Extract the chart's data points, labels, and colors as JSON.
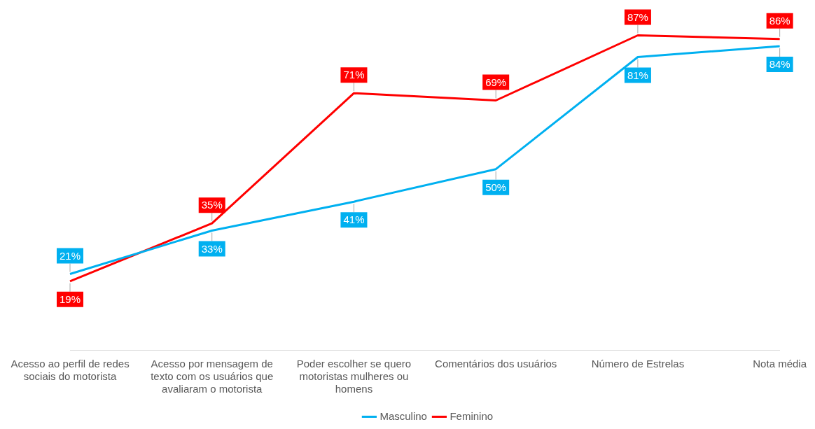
{
  "chart_data": {
    "type": "line",
    "categories": [
      "Acesso ao perfil de redes sociais do motorista",
      "Acesso por mensagem de texto com os usuários que avaliaram o motorista",
      "Poder escolher se quero motoristas mulheres ou homens",
      "Comentários dos usuários",
      "Número de Estrelas",
      "Nota média"
    ],
    "series": [
      {
        "name": "Masculino",
        "color": "#00b0f0",
        "values": [
          21,
          33,
          41,
          50,
          81,
          84
        ],
        "value_labels": [
          "21%",
          "33%",
          "41%",
          "50%",
          "81%",
          "84%"
        ]
      },
      {
        "name": "Feminino",
        "color": "#ff0000",
        "values": [
          19,
          35,
          71,
          69,
          87,
          86
        ],
        "value_labels": [
          "19%",
          "35%",
          "71%",
          "69%",
          "87%",
          "86%"
        ]
      }
    ],
    "tick_labels": "x",
    "grid": false,
    "legend": "bottom",
    "marker": "none",
    "line_style": "solid"
  }
}
